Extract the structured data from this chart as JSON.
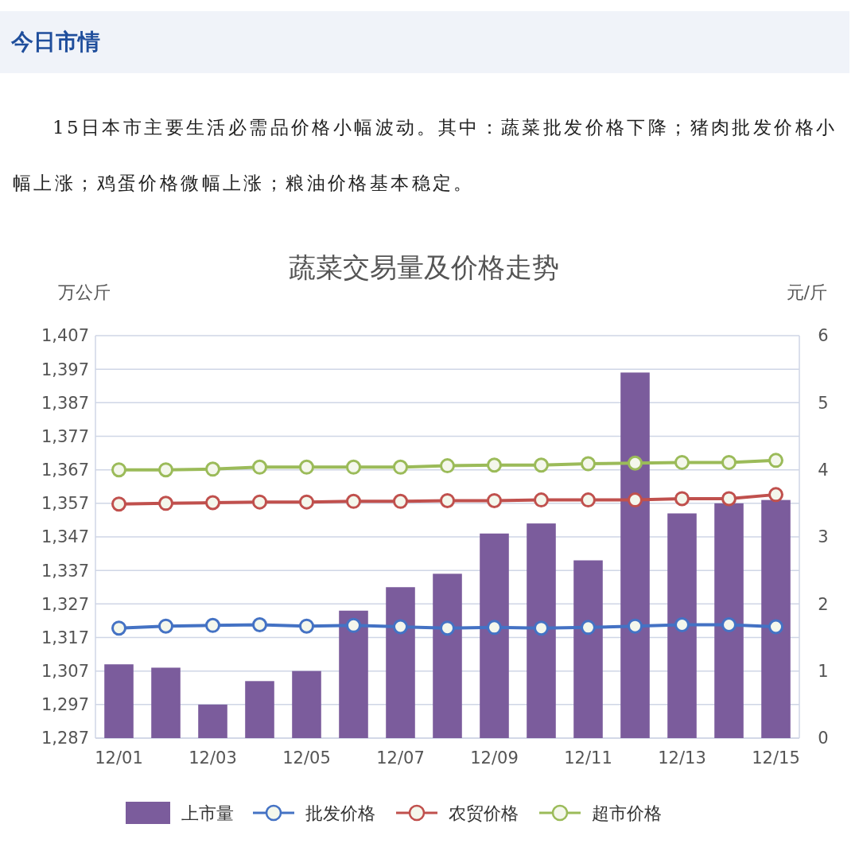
{
  "chart_data": {
    "type": "bar",
    "title": "蔬菜交易量及价格走势",
    "ylabel": "万公斤",
    "y2label": "元/斤",
    "annotations": [
      "今日市情",
      "15日本市主要生活必需品价格小幅波动。其中：蔬菜批发价格下降；猪肉批发价格小幅上涨；鸡蛋价格微幅上涨；粮油价格基本稳定。"
    ],
    "categories": [
      "12/01",
      null,
      "12/03",
      null,
      "12/05",
      null,
      "12/07",
      null,
      "12/09",
      null,
      "12/11",
      null,
      "12/13",
      null,
      "12/15"
    ],
    "series": [
      {
        "name": "上市量",
        "color": "#7b5c9c",
        "values": [
          1309,
          1308,
          1297,
          1304,
          1307,
          1325,
          1332,
          1336,
          1348,
          1351,
          1340,
          1396,
          1354,
          1357,
          1358
        ]
      },
      {
        "name": "批发价格",
        "type": "line",
        "axis": "y2",
        "color": "#4472c4",
        "values": [
          1.64,
          1.67,
          1.68,
          1.69,
          1.67,
          1.68,
          1.66,
          1.64,
          1.65,
          1.64,
          1.65,
          1.67,
          1.69,
          1.69,
          1.66
        ]
      },
      {
        "name": "农贸价格",
        "type": "line",
        "axis": "y2",
        "color": "#c0504d",
        "values": [
          3.49,
          3.5,
          3.51,
          3.52,
          3.52,
          3.53,
          3.53,
          3.54,
          3.54,
          3.55,
          3.55,
          3.55,
          3.57,
          3.57,
          3.63
        ]
      },
      {
        "name": "超市价格",
        "type": "line",
        "axis": "y2",
        "color": "#9bbb59",
        "values": [
          4.0,
          4.0,
          4.01,
          4.04,
          4.04,
          4.04,
          4.04,
          4.06,
          4.07,
          4.07,
          4.09,
          4.1,
          4.11,
          4.11,
          4.14
        ]
      }
    ],
    "ylim": [
      1287,
      1407
    ],
    "yticks": [
      {
        "value": 1287,
        "label": "1,287"
      },
      {
        "value": 1297,
        "label": "1,297"
      },
      {
        "value": 1307,
        "label": "1,307"
      },
      {
        "value": 1317,
        "label": "1,317"
      },
      {
        "value": 1327,
        "label": "1,327"
      },
      {
        "value": 1337,
        "label": "1,337"
      },
      {
        "value": 1347,
        "label": "1,347"
      },
      {
        "value": 1357,
        "label": "1,357"
      },
      {
        "value": 1367,
        "label": "1,367"
      },
      {
        "value": 1377,
        "label": "1,377"
      },
      {
        "value": 1387,
        "label": "1,387"
      },
      {
        "value": 1397,
        "label": "1,397"
      },
      {
        "value": 1407,
        "label": "1,407"
      }
    ],
    "y2lim": [
      0,
      6
    ],
    "y2ticks": [
      0,
      1,
      2,
      3,
      4,
      5,
      6
    ],
    "grid": "y",
    "legend": "bottom",
    "marker": "circle",
    "line_style": "solid"
  }
}
